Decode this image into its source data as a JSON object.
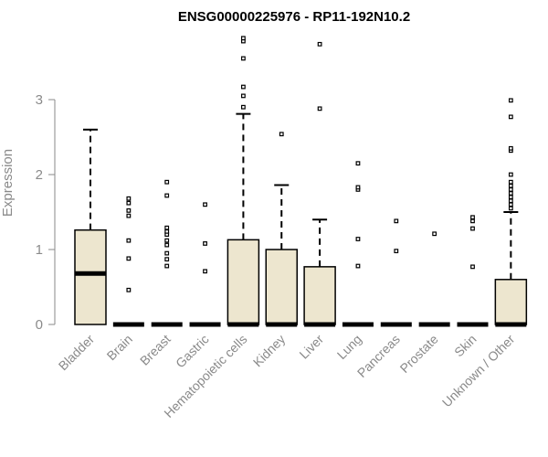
{
  "chart_data": {
    "type": "box",
    "title": "ENSG00000225976 - RP11-192N10.2",
    "ylabel": "Expression",
    "ylim": [
      0,
      4
    ],
    "yticks": [
      "0",
      "1",
      "2",
      "3"
    ],
    "box_color": "#ede6cf",
    "outline_color": "#000000",
    "axis_color": "#8a8a8a",
    "categories": [
      "Bladder",
      "Brain",
      "Breast",
      "Gastric",
      "Hematopoietic cells",
      "Kidney",
      "Liver",
      "Lung",
      "Pancreas",
      "Prostate",
      "Skin",
      "Unknown / Other"
    ],
    "boxes": [
      {
        "q1": 0,
        "median": 0.68,
        "q3": 1.26,
        "whisker_low": 0,
        "whisker_high": 2.6,
        "outliers": []
      },
      {
        "q1": 0,
        "median": 0,
        "q3": 0,
        "whisker_low": 0,
        "whisker_high": 0,
        "outliers": [
          0.46,
          0.88,
          1.12,
          1.45,
          1.52,
          1.62,
          1.68
        ]
      },
      {
        "q1": 0,
        "median": 0,
        "q3": 0,
        "whisker_low": 0,
        "whisker_high": 0,
        "outliers": [
          0.78,
          0.87,
          0.95,
          1.06,
          1.12,
          1.2,
          1.24,
          1.29,
          1.72,
          1.9
        ]
      },
      {
        "q1": 0,
        "median": 0,
        "q3": 0,
        "whisker_low": 0,
        "whisker_high": 0,
        "outliers": [
          0.71,
          1.08,
          1.6
        ]
      },
      {
        "q1": 0,
        "median": 0,
        "q3": 1.13,
        "whisker_low": 0,
        "whisker_high": 2.81,
        "outliers": [
          2.9,
          3.05,
          3.17,
          3.55,
          3.78,
          3.82
        ]
      },
      {
        "q1": 0,
        "median": 0,
        "q3": 1.0,
        "whisker_low": 0,
        "whisker_high": 1.86,
        "outliers": [
          2.54
        ]
      },
      {
        "q1": 0,
        "median": 0,
        "q3": 0.77,
        "whisker_low": 0,
        "whisker_high": 1.4,
        "outliers": [
          2.88,
          3.74
        ]
      },
      {
        "q1": 0,
        "median": 0,
        "q3": 0,
        "whisker_low": 0,
        "whisker_high": 0,
        "outliers": [
          0.78,
          1.14,
          1.8,
          1.83,
          2.15
        ]
      },
      {
        "q1": 0,
        "median": 0,
        "q3": 0,
        "whisker_low": 0,
        "whisker_high": 0,
        "outliers": [
          0.98,
          1.38
        ]
      },
      {
        "q1": 0,
        "median": 0,
        "q3": 0,
        "whisker_low": 0,
        "whisker_high": 0,
        "outliers": [
          1.21
        ]
      },
      {
        "q1": 0,
        "median": 0,
        "q3": 0,
        "whisker_low": 0,
        "whisker_high": 0,
        "outliers": [
          0.77,
          1.28,
          1.38,
          1.43
        ]
      },
      {
        "q1": 0,
        "median": 0,
        "q3": 0.6,
        "whisker_low": 0,
        "whisker_high": 1.5,
        "outliers": [
          1.55,
          1.6,
          1.65,
          1.7,
          1.75,
          1.8,
          1.85,
          1.9,
          2.0,
          2.32,
          2.35,
          2.77,
          2.99
        ]
      }
    ]
  }
}
